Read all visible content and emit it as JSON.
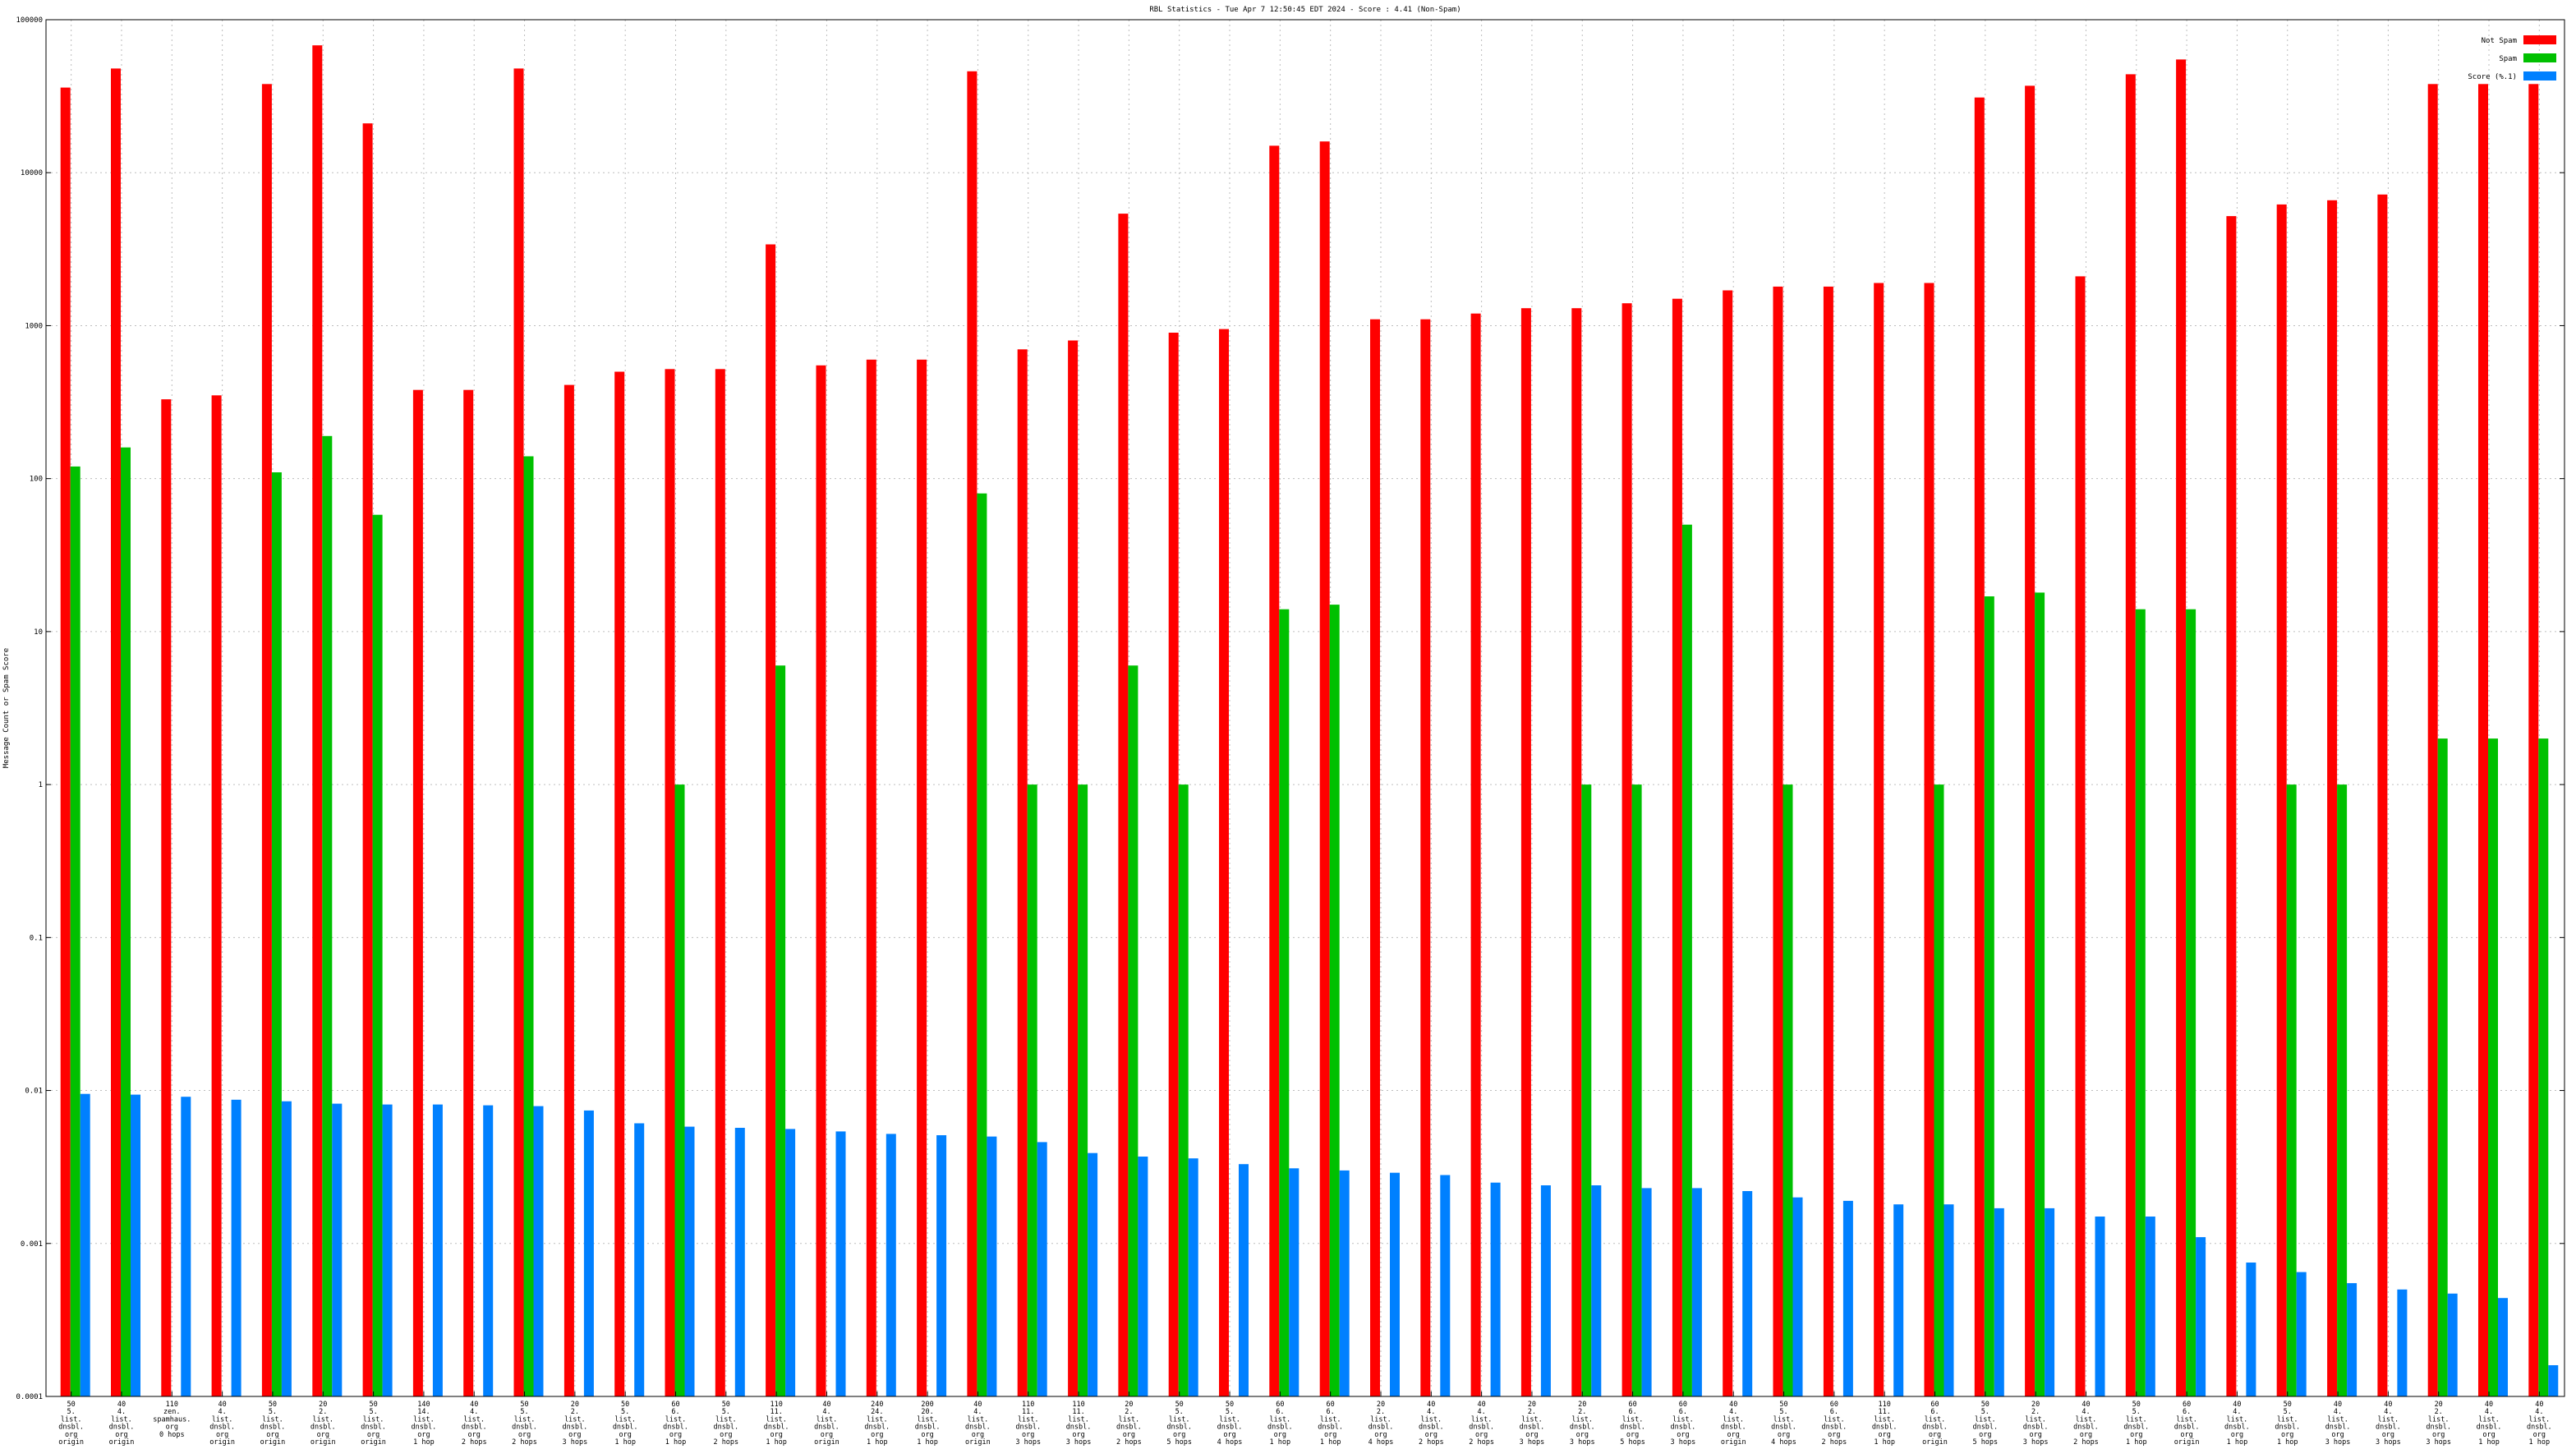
{
  "chart_data": {
    "type": "bar",
    "title": "RBL Statistics - Tue Apr  7 12:50:45 EDT 2024 - Score : 4.41 (Non-Spam)",
    "xlabel": "",
    "ylabel": "Message Count or Spam Score",
    "yscale": "log",
    "ylim": [
      0.0001,
      100000
    ],
    "yticks": [
      "100000",
      "10000",
      "1000",
      "100",
      "10",
      "1",
      "0.1",
      "0.01",
      "0.001",
      "0.0001"
    ],
    "grid": true,
    "legend_position": "top-right",
    "categories": [
      [
        "50",
        "5.",
        "list.",
        "dnsbl.",
        "org",
        "origin"
      ],
      [
        "40",
        "4.",
        "list.",
        "dnsbl.",
        "org",
        "origin"
      ],
      [
        "110",
        "zen.",
        "spamhaus.",
        "org",
        "0 hops"
      ],
      [
        "40",
        "4.",
        "list.",
        "dnsbl.",
        "org",
        "origin"
      ],
      [
        "50",
        "5.",
        "list.",
        "dnsbl.",
        "org",
        "origin"
      ],
      [
        "20",
        "2.",
        "list.",
        "dnsbl.",
        "org",
        "origin"
      ],
      [
        "50",
        "5.",
        "list.",
        "dnsbl.",
        "org",
        "origin"
      ],
      [
        "140",
        "14.",
        "list.",
        "dnsbl.",
        "org",
        "1 hop"
      ],
      [
        "40",
        "4.",
        "list.",
        "dnsbl.",
        "org",
        "2 hops"
      ],
      [
        "50",
        "5.",
        "list.",
        "dnsbl.",
        "org",
        "2 hops"
      ],
      [
        "20",
        "2.",
        "list.",
        "dnsbl.",
        "org",
        "3 hops"
      ],
      [
        "50",
        "5.",
        "list.",
        "dnsbl.",
        "org",
        "1 hop"
      ],
      [
        "60",
        "6.",
        "list.",
        "dnsbl.",
        "org",
        "1 hop"
      ],
      [
        "50",
        "5.",
        "list.",
        "dnsbl.",
        "org",
        "2 hops"
      ],
      [
        "110",
        "11.",
        "list.",
        "dnsbl.",
        "org",
        "1 hop"
      ],
      [
        "40",
        "4.",
        "list.",
        "dnsbl.",
        "org",
        "origin"
      ],
      [
        "240",
        "24.",
        "list.",
        "dnsbl.",
        "org",
        "1 hop"
      ],
      [
        "200",
        "20.",
        "list.",
        "dnsbl.",
        "org",
        "1 hop"
      ],
      [
        "40",
        "4.",
        "list.",
        "dnsbl.",
        "org",
        "origin"
      ],
      [
        "110",
        "11.",
        "list.",
        "dnsbl.",
        "org",
        "3 hops"
      ],
      [
        "110",
        "11.",
        "list.",
        "dnsbl.",
        "org",
        "3 hops"
      ],
      [
        "20",
        "2.",
        "list.",
        "dnsbl.",
        "org",
        "2 hops"
      ],
      [
        "50",
        "5.",
        "list.",
        "dnsbl.",
        "org",
        "5 hops"
      ],
      [
        "50",
        "5.",
        "list.",
        "dnsbl.",
        "org",
        "4 hops"
      ],
      [
        "60",
        "6.",
        "list.",
        "dnsbl.",
        "org",
        "1 hop"
      ],
      [
        "60",
        "6.",
        "list.",
        "dnsbl.",
        "org",
        "1 hop"
      ],
      [
        "20",
        "2.",
        "list.",
        "dnsbl.",
        "org",
        "4 hops"
      ],
      [
        "40",
        "4.",
        "list.",
        "dnsbl.",
        "org",
        "2 hops"
      ],
      [
        "40",
        "4.",
        "list.",
        "dnsbl.",
        "org",
        "2 hops"
      ],
      [
        "20",
        "2.",
        "list.",
        "dnsbl.",
        "org",
        "3 hops"
      ],
      [
        "20",
        "2.",
        "list.",
        "dnsbl.",
        "org",
        "3 hops"
      ],
      [
        "60",
        "6.",
        "list.",
        "dnsbl.",
        "org",
        "5 hops"
      ],
      [
        "60",
        "6.",
        "list.",
        "dnsbl.",
        "org",
        "3 hops"
      ],
      [
        "40",
        "4.",
        "list.",
        "dnsbl.",
        "org",
        "origin"
      ],
      [
        "50",
        "5.",
        "list.",
        "dnsbl.",
        "org",
        "4 hops"
      ],
      [
        "60",
        "6.",
        "list.",
        "dnsbl.",
        "org",
        "2 hops"
      ],
      [
        "110",
        "11.",
        "list.",
        "dnsbl.",
        "org",
        "1 hop"
      ],
      [
        "60",
        "6.",
        "list.",
        "dnsbl.",
        "org",
        "origin"
      ],
      [
        "50",
        "5.",
        "list.",
        "dnsbl.",
        "org",
        "5 hops"
      ],
      [
        "20",
        "2.",
        "list.",
        "dnsbl.",
        "org",
        "3 hops"
      ],
      [
        "40",
        "4.",
        "list.",
        "dnsbl.",
        "org",
        "2 hops"
      ],
      [
        "50",
        "5.",
        "list.",
        "dnsbl.",
        "org",
        "1 hop"
      ],
      [
        "60",
        "6.",
        "list.",
        "dnsbl.",
        "org",
        "origin"
      ],
      [
        "40",
        "4.",
        "list.",
        "dnsbl.",
        "org",
        "1 hop"
      ],
      [
        "50",
        "5.",
        "list.",
        "dnsbl.",
        "org",
        "1 hop"
      ],
      [
        "40",
        "4.",
        "list.",
        "dnsbl.",
        "org",
        "3 hops"
      ],
      [
        "40",
        "4.",
        "list.",
        "dnsbl.",
        "org",
        "3 hops"
      ],
      [
        "20",
        "2.",
        "list.",
        "dnsbl.",
        "org",
        "3 hops"
      ],
      [
        "40",
        "4.",
        "list.",
        "dnsbl.",
        "org",
        "1 hop"
      ],
      [
        "40",
        "4.",
        "list.",
        "dnsbl.",
        "org",
        "1 hop"
      ]
    ],
    "series": [
      {
        "name": "Not Spam",
        "color": "#ff0000",
        "values": [
          36000,
          48000,
          330,
          350,
          38000,
          68000,
          21000,
          380,
          380,
          48000,
          410,
          500,
          520,
          520,
          3400,
          550,
          600,
          600,
          46000,
          700,
          800,
          5400,
          900,
          950,
          15000,
          16000,
          1100,
          1100,
          1200,
          1300,
          1300,
          1400,
          1500,
          1700,
          1800,
          1800,
          1900,
          1900,
          31000,
          37000,
          2100,
          44000,
          55000,
          5200,
          6200,
          6600,
          7200,
          38000,
          38000,
          38000
        ]
      },
      {
        "name": "Spam",
        "color": "#00c000",
        "values": [
          120,
          160,
          0,
          0,
          110,
          190,
          58,
          0,
          0,
          140,
          0,
          0,
          1,
          0,
          6,
          0,
          0,
          0,
          80,
          1,
          1,
          6,
          1,
          0,
          14,
          15,
          0,
          0,
          0,
          0,
          1,
          1,
          50,
          0,
          1,
          0,
          0,
          1,
          17,
          18,
          0,
          14,
          14,
          0,
          1,
          1,
          0,
          2,
          2,
          2
        ]
      },
      {
        "name": "Score (%.1)",
        "color": "#0080ff",
        "values": [
          0.0095,
          0.0094,
          0.0091,
          0.0087,
          0.0085,
          0.0082,
          0.0081,
          0.0081,
          0.008,
          0.0079,
          0.0074,
          0.0061,
          0.0058,
          0.0057,
          0.0056,
          0.0054,
          0.0052,
          0.0051,
          0.005,
          0.0046,
          0.0039,
          0.0037,
          0.0036,
          0.0033,
          0.0031,
          0.003,
          0.0029,
          0.0028,
          0.0025,
          0.0024,
          0.0024,
          0.0023,
          0.0023,
          0.0022,
          0.002,
          0.0019,
          0.0018,
          0.0018,
          0.0017,
          0.0017,
          0.0015,
          0.0015,
          0.0011,
          0.00075,
          0.00065,
          0.00055,
          0.0005,
          0.00047,
          0.00044,
          0.00016
        ]
      }
    ]
  }
}
